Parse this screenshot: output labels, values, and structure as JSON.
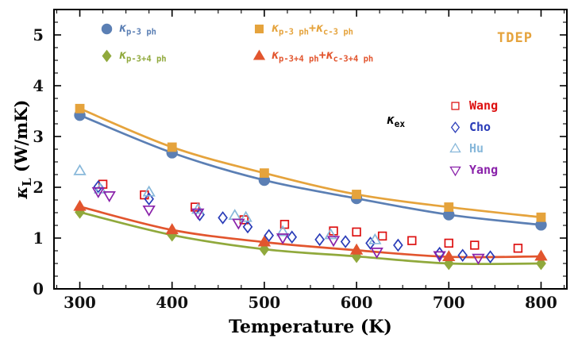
{
  "chart_data": {
    "type": "scatter",
    "title": "",
    "xlabel": "Temperature (K)",
    "ylabel": "κ_L (W/mK)",
    "ylabel_parts": [
      {
        "text": "κ",
        "italic": true
      },
      {
        "text": "L",
        "sub": true
      },
      {
        "text": " (W/mK)"
      }
    ],
    "xlim": [
      272,
      828
    ],
    "ylim": [
      0,
      5.5
    ],
    "x_ticks": [
      300,
      400,
      500,
      600,
      700,
      800
    ],
    "y_ticks": [
      0,
      1,
      2,
      3,
      4,
      5
    ],
    "x_minor_step": 25,
    "y_minor_step": 0.25,
    "grid": false,
    "legend_position": "upper-left",
    "experiment_legend_position": "middle-right",
    "model_series": [
      {
        "name": "κ_p-3 ph",
        "marker": "circle",
        "color": "#5b7fb4",
        "line": true,
        "points": [
          [
            300,
            3.42
          ],
          [
            400,
            2.68
          ],
          [
            500,
            2.14
          ],
          [
            600,
            1.78
          ],
          [
            700,
            1.46
          ],
          [
            800,
            1.26
          ]
        ]
      },
      {
        "name": "κ_p-3 ph + κ_c-3 ph",
        "marker": "square",
        "color": "#e5a33c",
        "line": true,
        "points": [
          [
            300,
            3.55
          ],
          [
            400,
            2.79
          ],
          [
            500,
            2.28
          ],
          [
            600,
            1.86
          ],
          [
            700,
            1.61
          ],
          [
            800,
            1.41
          ]
        ]
      },
      {
        "name": "κ_p-3+4 ph",
        "marker": "diamond",
        "color": "#90a93c",
        "line": true,
        "points": [
          [
            300,
            1.51
          ],
          [
            400,
            1.06
          ],
          [
            500,
            0.78
          ],
          [
            600,
            0.64
          ],
          [
            700,
            0.5
          ],
          [
            800,
            0.5
          ]
        ]
      },
      {
        "name": "κ_p-3+4 ph + κ_c-3+4 ph",
        "marker": "triangle-up",
        "color": "#e2552e",
        "line": true,
        "points": [
          [
            300,
            1.62
          ],
          [
            400,
            1.16
          ],
          [
            500,
            0.92
          ],
          [
            600,
            0.76
          ],
          [
            700,
            0.63
          ],
          [
            800,
            0.64
          ]
        ]
      }
    ],
    "experiment_series": [
      {
        "name": "Wang",
        "marker": "square-open",
        "color": "#dd1111",
        "points": [
          [
            325,
            2.06
          ],
          [
            370,
            1.85
          ],
          [
            425,
            1.61
          ],
          [
            478,
            1.36
          ],
          [
            522,
            1.27
          ],
          [
            575,
            1.14
          ],
          [
            600,
            1.12
          ],
          [
            628,
            1.04
          ],
          [
            660,
            0.95
          ],
          [
            700,
            0.9
          ],
          [
            728,
            0.86
          ],
          [
            775,
            0.8
          ]
        ]
      },
      {
        "name": "Cho",
        "marker": "diamond-open",
        "color": "#2a3cb8",
        "points": [
          [
            320,
            2.01
          ],
          [
            375,
            1.77
          ],
          [
            430,
            1.46
          ],
          [
            455,
            1.4
          ],
          [
            482,
            1.22
          ],
          [
            505,
            1.05
          ],
          [
            530,
            1.02
          ],
          [
            560,
            0.97
          ],
          [
            588,
            0.93
          ],
          [
            615,
            0.9
          ],
          [
            645,
            0.86
          ],
          [
            690,
            0.7
          ],
          [
            715,
            0.66
          ],
          [
            745,
            0.63
          ]
        ]
      },
      {
        "name": "Hu",
        "marker": "triangle-up-open",
        "color": "#88b8da",
        "points": [
          [
            300,
            2.32
          ],
          [
            322,
            1.96
          ],
          [
            375,
            1.9
          ],
          [
            428,
            1.56
          ],
          [
            468,
            1.44
          ],
          [
            480,
            1.4
          ],
          [
            520,
            1.12
          ],
          [
            572,
            1.06
          ],
          [
            620,
            0.96
          ]
        ]
      },
      {
        "name": "Yang",
        "marker": "triangle-down-open",
        "color": "#8a22aa",
        "points": [
          [
            320,
            1.92
          ],
          [
            332,
            1.84
          ],
          [
            375,
            1.56
          ],
          [
            428,
            1.5
          ],
          [
            472,
            1.3
          ],
          [
            520,
            1.01
          ],
          [
            575,
            0.96
          ],
          [
            622,
            0.73
          ],
          [
            690,
            0.66
          ],
          [
            732,
            0.61
          ]
        ]
      }
    ]
  },
  "legend": {
    "model": [
      {
        "marker": "circle",
        "color": "#5b7fb4",
        "parts": [
          {
            "text": "κ",
            "italic": true
          },
          {
            "text": "p-3 ph",
            "sub": true
          }
        ]
      },
      {
        "marker": "square",
        "color": "#e5a33c",
        "parts": [
          {
            "text": "κ",
            "italic": true
          },
          {
            "text": "p-3 ph",
            "sub": true
          },
          {
            "text": "+"
          },
          {
            "text": "κ",
            "italic": true
          },
          {
            "text": "c-3 ph",
            "sub": true
          }
        ]
      },
      {
        "marker": "diamond",
        "color": "#90a93c",
        "parts": [
          {
            "text": "κ",
            "italic": true
          },
          {
            "text": "p-3+4 ph",
            "sub": true
          }
        ]
      },
      {
        "marker": "triangle-up",
        "color": "#e2552e",
        "parts": [
          {
            "text": "κ",
            "italic": true
          },
          {
            "text": "p-3+4 ph",
            "sub": true
          },
          {
            "text": "+"
          },
          {
            "text": "κ",
            "italic": true
          },
          {
            "text": "c-3+4 ph",
            "sub": true
          }
        ]
      }
    ],
    "method_label": "TDEP",
    "method_color": "#e5a33c",
    "experiment_title_parts": [
      {
        "text": "κ",
        "italic": true
      },
      {
        "text": "ex",
        "sub": true
      }
    ],
    "experiment": [
      {
        "marker": "square-open",
        "color": "#dd1111",
        "label": "Wang"
      },
      {
        "marker": "diamond-open",
        "color": "#2a3cb8",
        "label": "Cho"
      },
      {
        "marker": "triangle-up-open",
        "color": "#88b8da",
        "label": "Hu"
      },
      {
        "marker": "triangle-down-open",
        "color": "#8a22aa",
        "label": "Yang"
      }
    ]
  }
}
